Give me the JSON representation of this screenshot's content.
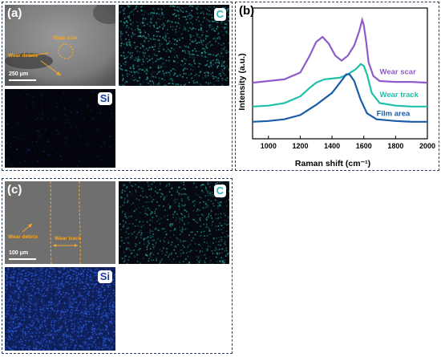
{
  "panel_a": {
    "label": "(a)",
    "annotations": {
      "wear_scar": "Wear scar",
      "wear_debris": "Wear debris"
    },
    "scale_bar": "250 μm",
    "element_maps": {
      "carbon": "C",
      "silicon": "Si"
    },
    "colors": {
      "map_c": "#2bbcb8",
      "map_si": "#1a3fa8",
      "annot": "#f5a623"
    }
  },
  "panel_c": {
    "label": "(c)",
    "annotations": {
      "wear_debris": "Wear debris",
      "wear_track": "Wear track"
    },
    "scale_bar": "100 μm",
    "element_maps": {
      "carbon": "C",
      "silicon": "Si"
    }
  },
  "panel_b": {
    "label": "(b)"
  },
  "chart_data": {
    "type": "line",
    "xlabel": "Raman shift (cm⁻¹)",
    "ylabel": "Intensity (a.u.)",
    "xlim": [
      900,
      2000
    ],
    "xticks": [
      1000,
      1200,
      1400,
      1600,
      1800,
      2000
    ],
    "yticks": "none",
    "series": [
      {
        "name": "Wear scar",
        "color": "#8e5cc8",
        "points": [
          [
            900,
            0.66
          ],
          [
            1000,
            0.67
          ],
          [
            1100,
            0.68
          ],
          [
            1200,
            0.72
          ],
          [
            1260,
            0.82
          ],
          [
            1300,
            0.9
          ],
          [
            1340,
            0.93
          ],
          [
            1380,
            0.89
          ],
          [
            1420,
            0.82
          ],
          [
            1460,
            0.79
          ],
          [
            1500,
            0.82
          ],
          [
            1540,
            0.88
          ],
          [
            1570,
            0.96
          ],
          [
            1590,
            1.03
          ],
          [
            1600,
            1.0
          ],
          [
            1615,
            0.9
          ],
          [
            1630,
            0.78
          ],
          [
            1660,
            0.7
          ],
          [
            1700,
            0.67
          ],
          [
            1800,
            0.665
          ],
          [
            1900,
            0.665
          ],
          [
            2000,
            0.66
          ]
        ]
      },
      {
        "name": "Wear track",
        "color": "#20c0a8",
        "points": [
          [
            900,
            0.52
          ],
          [
            1000,
            0.525
          ],
          [
            1100,
            0.54
          ],
          [
            1200,
            0.58
          ],
          [
            1260,
            0.63
          ],
          [
            1300,
            0.66
          ],
          [
            1350,
            0.68
          ],
          [
            1400,
            0.685
          ],
          [
            1450,
            0.69
          ],
          [
            1500,
            0.71
          ],
          [
            1550,
            0.74
          ],
          [
            1580,
            0.77
          ],
          [
            1600,
            0.76
          ],
          [
            1620,
            0.71
          ],
          [
            1650,
            0.6
          ],
          [
            1700,
            0.54
          ],
          [
            1800,
            0.525
          ],
          [
            1900,
            0.52
          ],
          [
            2000,
            0.52
          ]
        ]
      },
      {
        "name": "Film area",
        "color": "#1a5ca8",
        "points": [
          [
            900,
            0.43
          ],
          [
            1000,
            0.435
          ],
          [
            1100,
            0.445
          ],
          [
            1200,
            0.47
          ],
          [
            1300,
            0.53
          ],
          [
            1400,
            0.6
          ],
          [
            1450,
            0.66
          ],
          [
            1490,
            0.71
          ],
          [
            1510,
            0.71
          ],
          [
            1540,
            0.67
          ],
          [
            1580,
            0.56
          ],
          [
            1620,
            0.48
          ],
          [
            1680,
            0.445
          ],
          [
            1800,
            0.435
          ],
          [
            1900,
            0.43
          ],
          [
            2000,
            0.43
          ]
        ]
      }
    ],
    "series_labels_placement": "right, above each curve"
  }
}
